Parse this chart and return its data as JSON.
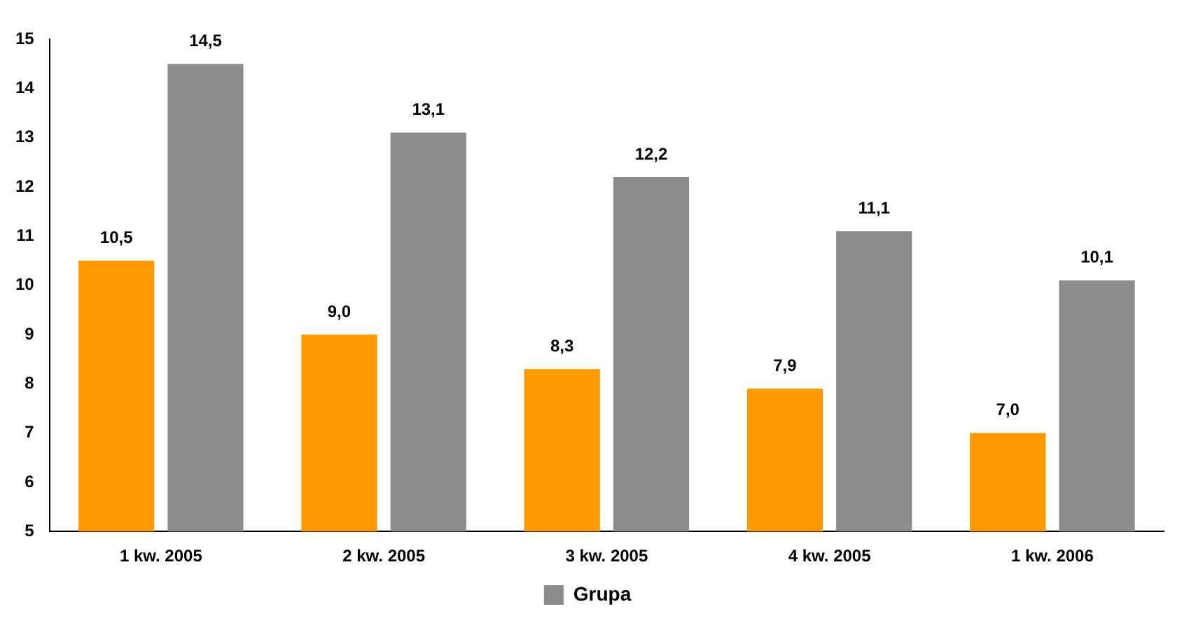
{
  "chart_data": {
    "type": "bar",
    "categories": [
      "1 kw. 2005",
      "2 kw. 2005",
      "3 kw. 2005",
      "4 kw. 2005",
      "1 kw. 2006"
    ],
    "series": [
      {
        "color": "#ff9900",
        "values": [
          10.5,
          9.0,
          8.3,
          7.9,
          7.0
        ],
        "value_labels": [
          "10,5",
          "9,0",
          "8,3",
          "7,9",
          "7,0"
        ]
      },
      {
        "name": "Grupa",
        "color": "#8c8c8c",
        "values": [
          14.5,
          13.1,
          12.2,
          11.1,
          10.1
        ],
        "value_labels": [
          "14,5",
          "13,1",
          "12,2",
          "11,1",
          "10,1"
        ]
      }
    ],
    "ylim": [
      5,
      15
    ],
    "yticks": [
      5,
      6,
      7,
      8,
      9,
      10,
      11,
      12,
      13,
      14,
      15
    ],
    "grid": false,
    "legend": "bottom"
  }
}
